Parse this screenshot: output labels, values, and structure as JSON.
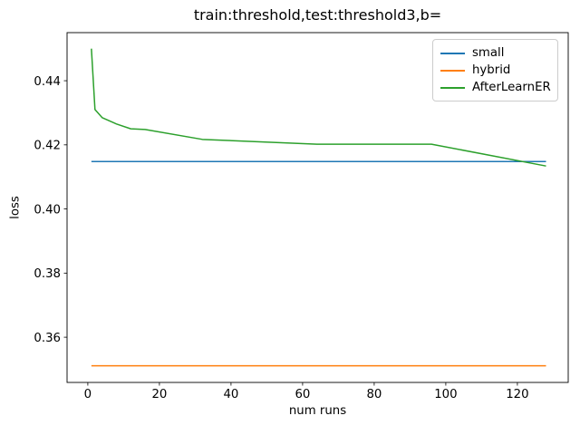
{
  "chart_data": {
    "type": "line",
    "title": "train:threshold,test:threshold3,b=",
    "xlabel": "num runs",
    "ylabel": "loss",
    "xlim": [
      -5.8,
      134.2
    ],
    "ylim": [
      0.3459,
      0.455
    ],
    "xtick_values": [
      0,
      20,
      40,
      60,
      80,
      100,
      120
    ],
    "xtick_labels": [
      "0",
      "20",
      "40",
      "60",
      "80",
      "100",
      "120"
    ],
    "ytick_values": [
      0.36,
      0.38,
      0.4,
      0.42,
      0.44
    ],
    "ytick_labels": [
      "0.36",
      "0.38",
      "0.40",
      "0.42",
      "0.44"
    ],
    "grid": false,
    "legend_position": "upper right",
    "colors": {
      "small": "#1f77b4",
      "hybrid": "#ff7f0e",
      "AfterLearnER": "#2ca02c",
      "spine": "#000000",
      "legend_border": "#cccccc"
    },
    "series": [
      {
        "name": "small",
        "color": "#1f77b4",
        "x": [
          1,
          128
        ],
        "y": [
          0.4148,
          0.4148
        ]
      },
      {
        "name": "hybrid",
        "color": "#ff7f0e",
        "x": [
          1,
          128
        ],
        "y": [
          0.3511,
          0.3511
        ]
      },
      {
        "name": "AfterLearnER",
        "color": "#2ca02c",
        "x": [
          1,
          2,
          4,
          8,
          12,
          16,
          32,
          64,
          96,
          128
        ],
        "y": [
          0.45,
          0.431,
          0.4285,
          0.4265,
          0.425,
          0.4248,
          0.4217,
          0.4202,
          0.4202,
          0.4134
        ]
      }
    ]
  }
}
